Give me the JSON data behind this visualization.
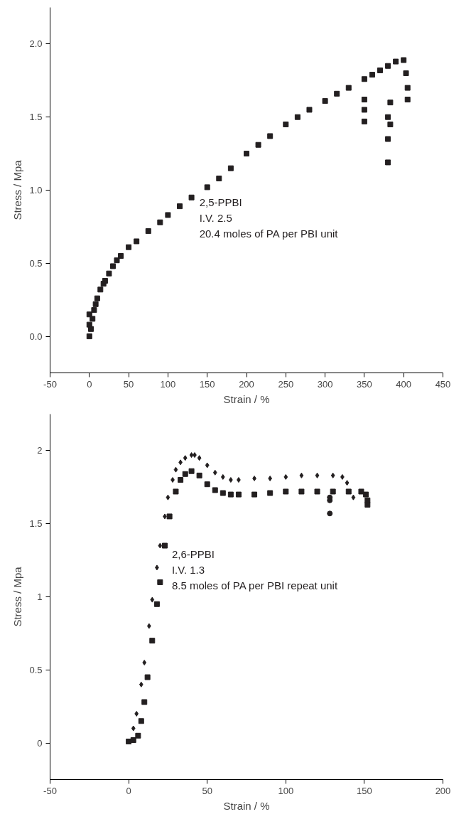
{
  "chart_data": [
    {
      "type": "scatter",
      "xlabel": "Strain / %",
      "ylabel": "Stress / Mpa",
      "xlim": [
        -50,
        450
      ],
      "ylim": [
        -0.25,
        2.25
      ],
      "xticks": [
        -50,
        0,
        50,
        100,
        150,
        200,
        250,
        300,
        350,
        400,
        450
      ],
      "yticks": [
        {
          "value": 0,
          "label": "0.0"
        },
        {
          "value": 0.5,
          "label": "0.5"
        },
        {
          "value": 1,
          "label": "1.0"
        },
        {
          "value": 1.5,
          "label": "1.5"
        },
        {
          "value": 2,
          "label": "2.0"
        }
      ],
      "grid": false,
      "marker": "square",
      "annotations": [
        "2,5-PPBI",
        "I.V. 2.5",
        "20.4 moles of PA per PBI unit"
      ],
      "series": [
        {
          "color": "#231f20",
          "x": [
            0,
            0,
            0,
            2,
            4,
            6,
            8,
            10,
            14,
            18,
            20,
            25,
            30,
            35,
            40,
            50,
            60,
            75,
            90,
            100,
            115,
            130,
            150,
            165,
            180,
            200,
            215,
            230,
            250,
            265,
            280,
            300,
            315,
            330,
            350,
            360,
            370,
            380,
            390,
            400,
            403,
            405,
            405,
            350,
            350,
            350,
            380,
            380,
            380,
            383,
            383
          ],
          "values": [
            0.0,
            0.08,
            0.15,
            0.05,
            0.12,
            0.18,
            0.22,
            0.26,
            0.32,
            0.36,
            0.38,
            0.43,
            0.48,
            0.52,
            0.55,
            0.61,
            0.65,
            0.72,
            0.78,
            0.83,
            0.89,
            0.95,
            1.02,
            1.08,
            1.15,
            1.25,
            1.31,
            1.37,
            1.45,
            1.5,
            1.55,
            1.61,
            1.66,
            1.7,
            1.76,
            1.79,
            1.82,
            1.85,
            1.88,
            1.89,
            1.8,
            1.7,
            1.62,
            1.47,
            1.55,
            1.62,
            1.19,
            1.35,
            1.5,
            1.45,
            1.6
          ]
        }
      ]
    },
    {
      "type": "scatter",
      "xlabel": "Strain / %",
      "ylabel": "Stress / Mpa",
      "xlim": [
        -50,
        200
      ],
      "ylim": [
        -0.25,
        2.25
      ],
      "xticks": [
        -50,
        0,
        50,
        100,
        150,
        200
      ],
      "yticks": [
        0,
        0.5,
        1,
        1.5,
        2
      ],
      "grid": false,
      "annotations": [
        "2,6-PPBI",
        "I.V. 1.3",
        "8.5 moles of PA per PBI repeat unit"
      ],
      "series": [
        {
          "color": "#231f20",
          "marker": "diamond",
          "x": [
            3,
            5,
            8,
            10,
            13,
            15,
            18,
            20,
            23,
            25,
            28,
            30,
            33,
            36,
            40,
            42,
            45,
            50,
            55,
            60,
            65,
            70,
            80,
            90,
            100,
            110,
            120,
            130,
            136,
            139,
            143
          ],
          "values": [
            0.1,
            0.2,
            0.4,
            0.55,
            0.8,
            0.98,
            1.2,
            1.35,
            1.55,
            1.68,
            1.8,
            1.87,
            1.92,
            1.95,
            1.97,
            1.97,
            1.95,
            1.9,
            1.85,
            1.82,
            1.8,
            1.8,
            1.81,
            1.81,
            1.82,
            1.83,
            1.83,
            1.83,
            1.82,
            1.78,
            1.68
          ]
        },
        {
          "color": "#231f20",
          "marker": "square",
          "x": [
            0,
            3,
            6,
            8,
            10,
            12,
            15,
            18,
            20,
            23,
            26,
            30,
            33,
            36,
            40,
            45,
            50,
            55,
            60,
            65,
            70,
            80,
            90,
            100,
            110,
            120,
            130,
            140,
            148,
            151,
            152,
            152
          ],
          "values": [
            0.01,
            0.02,
            0.05,
            0.15,
            0.28,
            0.45,
            0.7,
            0.95,
            1.1,
            1.35,
            1.55,
            1.72,
            1.8,
            1.84,
            1.86,
            1.83,
            1.77,
            1.73,
            1.71,
            1.7,
            1.7,
            1.7,
            1.71,
            1.72,
            1.72,
            1.72,
            1.72,
            1.72,
            1.72,
            1.7,
            1.66,
            1.63
          ]
        },
        {
          "color": "#231f20",
          "marker": "circle",
          "x": [
            128,
            128,
            128
          ],
          "values": [
            1.57,
            1.66,
            1.68
          ]
        }
      ]
    }
  ]
}
